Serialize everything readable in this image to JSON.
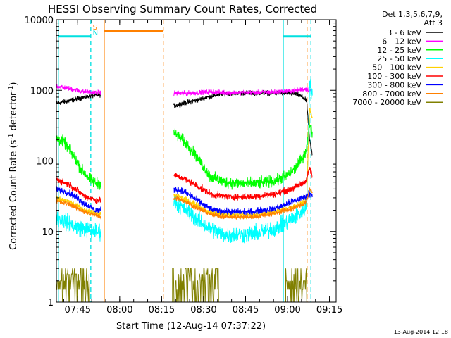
{
  "chart_data": {
    "type": "line",
    "title": "HESSI Observing Summary Count Rates, Corrected",
    "xlabel": "Start Time (12-Aug-14 07:37:22)",
    "ylabel": "Corrected Count Rate (s",
    "ylabel_sup1": "-1",
    "ylabel_mid": " detector",
    "ylabel_sup2": "-1",
    "ylabel_end": ")",
    "yscale": "log",
    "ylim": [
      1,
      10000
    ],
    "xlim_minutes": [
      0,
      100
    ],
    "x_ticks": [
      {
        "label": "07:45",
        "m": 7.63
      },
      {
        "label": "08:00",
        "m": 22.63
      },
      {
        "label": "08:15",
        "m": 37.63
      },
      {
        "label": "08:30",
        "m": 52.63
      },
      {
        "label": "08:45",
        "m": 67.63
      },
      {
        "label": "09:00",
        "m": 82.63
      },
      {
        "label": "09:15",
        "m": 97.63
      }
    ],
    "y_ticks": [
      {
        "label": "1",
        "v": 1
      },
      {
        "label": "10",
        "v": 10
      },
      {
        "label": "100",
        "v": 100
      },
      {
        "label": "1000",
        "v": 1000
      },
      {
        "label": "10000",
        "v": 10000
      }
    ],
    "legend": {
      "header": [
        "Det 1,3,5,6,7,9,",
        "Att 3"
      ],
      "placement": "right"
    },
    "series": [
      {
        "name": "3 - 6 keV",
        "color": "#000000",
        "noise": 0.03,
        "segments": [
          [
            [
              0,
              650
            ],
            [
              5,
              720
            ],
            [
              10,
              800
            ],
            [
              14,
              850
            ],
            [
              16,
              870
            ]
          ],
          [
            [
              42,
              600
            ],
            [
              45,
              650
            ],
            [
              50,
              720
            ],
            [
              55,
              820
            ],
            [
              60,
              900
            ],
            [
              70,
              920
            ],
            [
              80,
              920
            ],
            [
              86,
              880
            ],
            [
              88,
              800
            ],
            [
              89.5,
              700
            ],
            [
              90.5,
              200
            ],
            [
              91.5,
              120
            ]
          ]
        ]
      },
      {
        "name": "6 - 12 keV",
        "color": "#ff00ff",
        "noise": 0.03,
        "segments": [
          [
            [
              0,
              1150
            ],
            [
              5,
              1050
            ],
            [
              10,
              950
            ],
            [
              14,
              930
            ],
            [
              16,
              920
            ]
          ],
          [
            [
              42,
              920
            ],
            [
              45,
              900
            ],
            [
              50,
              920
            ],
            [
              55,
              950
            ],
            [
              60,
              930
            ],
            [
              70,
              930
            ],
            [
              80,
              950
            ],
            [
              86,
              1000
            ],
            [
              89,
              1050
            ],
            [
              90.5,
              1000
            ],
            [
              91.5,
              950
            ]
          ]
        ]
      },
      {
        "name": "12 - 25 keV",
        "color": "#00ff00",
        "noise": 0.07,
        "segments": [
          [
            [
              0,
              210
            ],
            [
              3,
              180
            ],
            [
              6,
              120
            ],
            [
              9,
              75
            ],
            [
              12,
              55
            ],
            [
              14,
              48
            ],
            [
              16,
              48
            ]
          ],
          [
            [
              42,
              250
            ],
            [
              45,
              200
            ],
            [
              48,
              150
            ],
            [
              52,
              90
            ],
            [
              55,
              60
            ],
            [
              60,
              50
            ],
            [
              66,
              48
            ],
            [
              72,
              48
            ],
            [
              78,
              52
            ],
            [
              82,
              60
            ],
            [
              85,
              75
            ],
            [
              88,
              110
            ],
            [
              89.5,
              150
            ],
            [
              90.5,
              350
            ],
            [
              91.5,
              250
            ]
          ]
        ]
      },
      {
        "name": "25 - 50 keV",
        "color": "#00ffff",
        "noise": 0.1,
        "segments": [
          [
            [
              0,
              16
            ],
            [
              3,
              14
            ],
            [
              6,
              12
            ],
            [
              10,
              11
            ],
            [
              14,
              10
            ],
            [
              16,
              10
            ]
          ],
          [
            [
              42,
              27
            ],
            [
              45,
              22
            ],
            [
              48,
              18
            ],
            [
              52,
              13
            ],
            [
              55,
              11
            ],
            [
              60,
              9
            ],
            [
              66,
              9
            ],
            [
              72,
              9.5
            ],
            [
              78,
              11
            ],
            [
              82,
              13
            ],
            [
              85,
              16
            ],
            [
              88,
              19
            ],
            [
              89.5,
              24
            ],
            [
              90.5,
              1200
            ],
            [
              91.5,
              900
            ]
          ]
        ]
      },
      {
        "name": "50 - 100 keV",
        "color": "#ffd000",
        "noise": 0.035,
        "segments": [
          [
            [
              0,
              30
            ],
            [
              5,
              26
            ],
            [
              10,
              20
            ],
            [
              14,
              18
            ],
            [
              16,
              18
            ]
          ],
          [
            [
              42,
              33
            ],
            [
              45,
              30
            ],
            [
              48,
              26
            ],
            [
              52,
              21
            ],
            [
              56,
              18
            ],
            [
              62,
              17
            ],
            [
              70,
              17
            ],
            [
              78,
              19
            ],
            [
              84,
              22
            ],
            [
              88,
              25
            ],
            [
              89.5,
              30
            ],
            [
              90.5,
              550
            ],
            [
              91.5,
              400
            ]
          ]
        ]
      },
      {
        "name": "100 - 300 keV",
        "color": "#ff0000",
        "noise": 0.04,
        "segments": [
          [
            [
              0,
              55
            ],
            [
              5,
              45
            ],
            [
              10,
              32
            ],
            [
              14,
              28
            ],
            [
              16,
              28
            ]
          ],
          [
            [
              42,
              62
            ],
            [
              45,
              58
            ],
            [
              48,
              50
            ],
            [
              52,
              40
            ],
            [
              56,
              33
            ],
            [
              62,
              31
            ],
            [
              70,
              31
            ],
            [
              78,
              34
            ],
            [
              84,
              40
            ],
            [
              88,
              48
            ],
            [
              89.5,
              55
            ],
            [
              90.5,
              80
            ],
            [
              91.5,
              60
            ]
          ]
        ]
      },
      {
        "name": "300 - 800 keV",
        "color": "#0000ff",
        "noise": 0.04,
        "segments": [
          [
            [
              0,
              40
            ],
            [
              5,
              35
            ],
            [
              10,
              25
            ],
            [
              14,
              20
            ],
            [
              16,
              20
            ]
          ],
          [
            [
              42,
              40
            ],
            [
              45,
              38
            ],
            [
              48,
              32
            ],
            [
              52,
              25
            ],
            [
              56,
              20
            ],
            [
              62,
              19
            ],
            [
              70,
              19
            ],
            [
              78,
              21
            ],
            [
              84,
              26
            ],
            [
              88,
              30
            ],
            [
              89.5,
              32
            ],
            [
              90.5,
              35
            ],
            [
              91.5,
              33
            ]
          ]
        ]
      },
      {
        "name": "800 - 7000 keV",
        "color": "#ff8000",
        "noise": 0.03,
        "segments": [
          [
            [
              0,
              27
            ],
            [
              5,
              24
            ],
            [
              10,
              19
            ],
            [
              14,
              17
            ],
            [
              16,
              16
            ]
          ],
          [
            [
              42,
              30
            ],
            [
              45,
              28
            ],
            [
              48,
              24
            ],
            [
              52,
              20
            ],
            [
              56,
              17
            ],
            [
              62,
              16
            ],
            [
              70,
              16
            ],
            [
              78,
              18
            ],
            [
              84,
              21
            ],
            [
              88,
              24
            ],
            [
              89.5,
              27
            ],
            [
              90.5,
              40
            ],
            [
              91.5,
              35
            ]
          ]
        ]
      },
      {
        "name": "7000 - 20000 keV",
        "color": "#808000",
        "noise": 0,
        "segments": []
      }
    ],
    "flag_lines": [
      {
        "m": 0.7,
        "color": "#00e0e0"
      },
      {
        "m": 12.3,
        "color": "#00e0e0",
        "dashed": true
      },
      {
        "m": 17.1,
        "color": "#ff8000"
      },
      {
        "m": 38.2,
        "color": "#ff8000",
        "dashed": true
      },
      {
        "m": 81.1,
        "color": "#00e0e0"
      },
      {
        "m": 89.6,
        "color": "#ff8000",
        "dashed": true
      },
      {
        "m": 91.0,
        "color": "#00e0e0",
        "dashed": true
      }
    ],
    "flag_bars": [
      {
        "m0": 0.7,
        "m1": 12.3,
        "v": 5800,
        "color": "#00e0e0"
      },
      {
        "m0": 17.1,
        "m1": 38.2,
        "v": 7000,
        "color": "#ff8000"
      },
      {
        "m0": 81.1,
        "m1": 91.0,
        "v": 5800,
        "color": "#00e0e0"
      }
    ],
    "flag_labels": [
      {
        "text": "S",
        "m": 13.0,
        "color": "#ff8000",
        "row": 1
      },
      {
        "text": "N",
        "m": 13.0,
        "color": "#00e0e0",
        "row": 2
      }
    ]
  },
  "footer": {
    "timestamp": "13-Aug-2014 12:18"
  }
}
